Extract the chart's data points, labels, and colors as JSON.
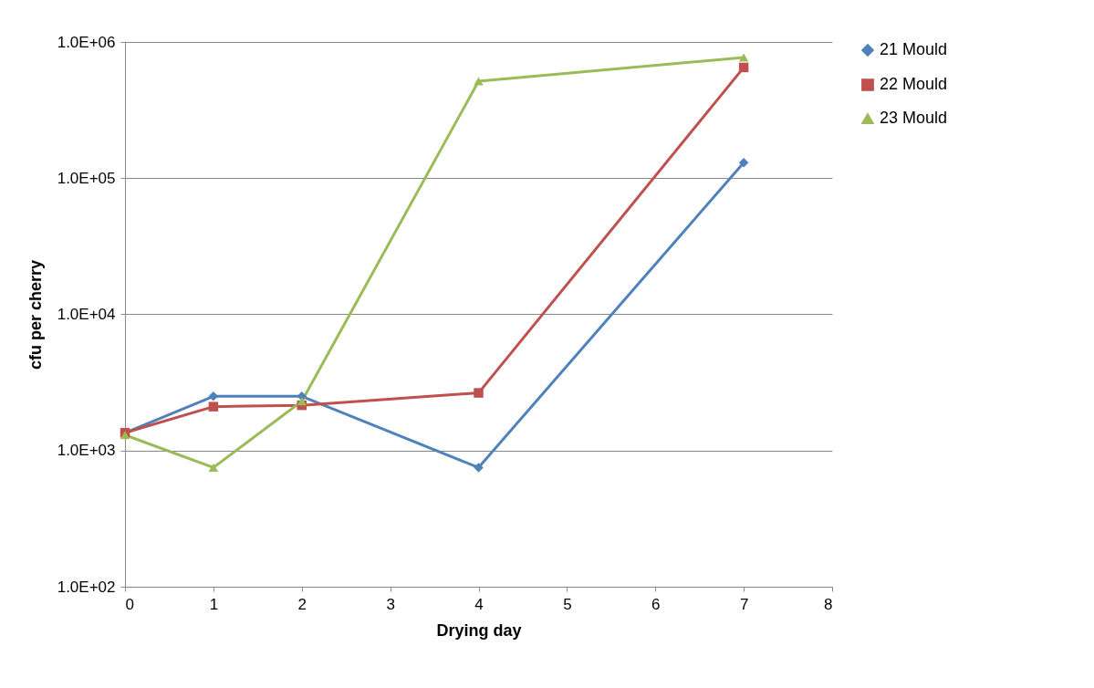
{
  "chart_data": {
    "type": "line",
    "xlabel": "Drying day",
    "ylabel": "cfu per cherry",
    "log": "y",
    "grid": "y",
    "legend": "right",
    "line_style": "solid",
    "xlim": [
      0,
      8
    ],
    "xticks": [
      0,
      1,
      2,
      3,
      4,
      5,
      6,
      7,
      8
    ],
    "ylim": [
      100,
      1000000
    ],
    "yticks": [
      {
        "value": 100,
        "label": "1.0E+02"
      },
      {
        "value": 1000,
        "label": "1.0E+03"
      },
      {
        "value": 10000,
        "label": "1.0E+04"
      },
      {
        "value": 100000,
        "label": "1.0E+05"
      },
      {
        "value": 1000000,
        "label": "1.0E+06"
      }
    ],
    "x": [
      0,
      1,
      2,
      4,
      7
    ],
    "series": [
      {
        "name": "21 Mould",
        "color": "#4f81bd",
        "marker": "diamond",
        "values": [
          1350,
          2500,
          2500,
          750,
          130000
        ]
      },
      {
        "name": "22 Mould",
        "color": "#c0504d",
        "marker": "square",
        "values": [
          1350,
          2100,
          2150,
          2650,
          650000
        ]
      },
      {
        "name": "23 Mould",
        "color": "#9bbb59",
        "marker": "triangle",
        "values": [
          1300,
          750,
          2300,
          515000,
          770000
        ]
      }
    ]
  }
}
